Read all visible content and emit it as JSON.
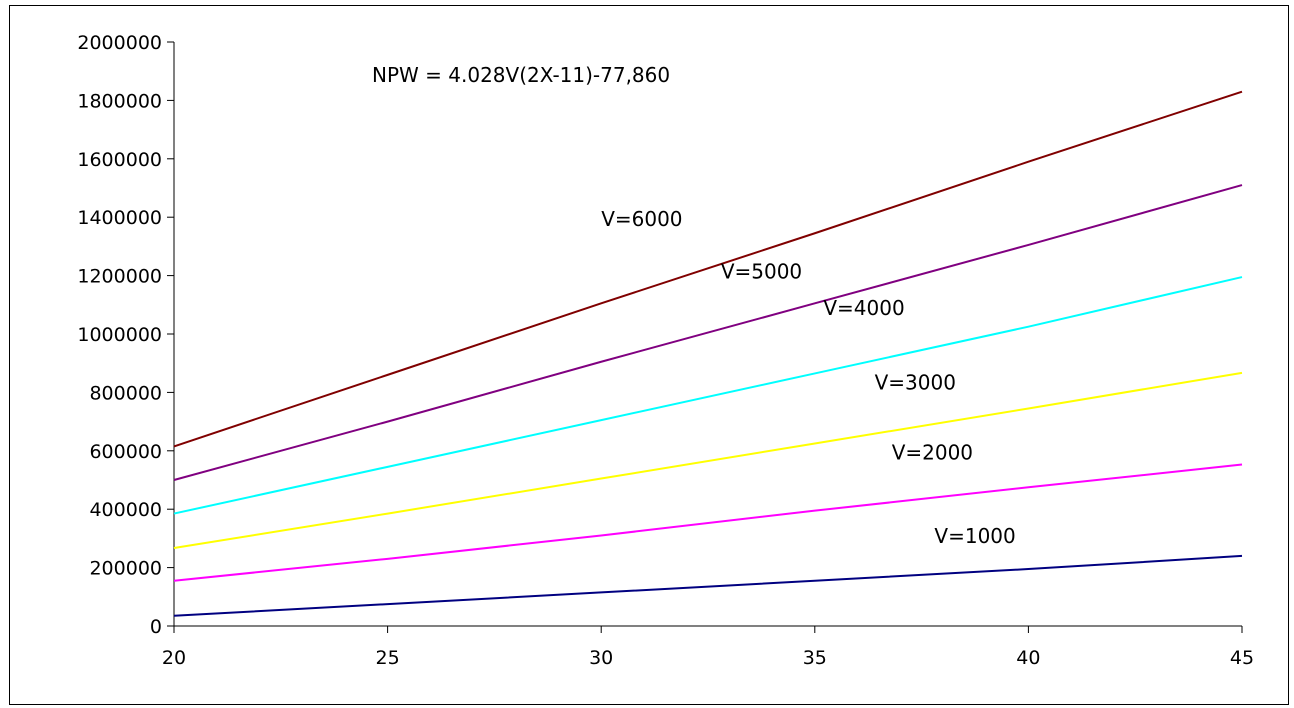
{
  "chart_data": {
    "type": "line",
    "title": "",
    "xlabel": "",
    "ylabel": "",
    "xlim": [
      20,
      45
    ],
    "ylim": [
      0,
      2000000
    ],
    "x_ticks": [
      20,
      25,
      30,
      35,
      40,
      45
    ],
    "y_ticks": [
      0,
      200000,
      400000,
      600000,
      800000,
      1000000,
      1200000,
      1400000,
      1600000,
      1800000,
      2000000
    ],
    "grid": false,
    "legend": "none",
    "annotations": {
      "equation": "NPW = 4.028V(2X-11)-77,860"
    },
    "x": [
      20,
      25,
      30,
      35,
      40,
      45
    ],
    "series": [
      {
        "name": "V=1000",
        "color": "#000080",
        "values": [
          35000,
          75000,
          115000,
          155000,
          195000,
          240000
        ]
      },
      {
        "name": "V=2000",
        "color": "#ff00ff",
        "values": [
          155000,
          230000,
          310000,
          395000,
          475000,
          553000
        ]
      },
      {
        "name": "V=3000",
        "color": "#ffff00",
        "values": [
          267000,
          385000,
          505000,
          625000,
          745000,
          867000
        ]
      },
      {
        "name": "V=4000",
        "color": "#00ffff",
        "values": [
          385000,
          545000,
          705000,
          865000,
          1025000,
          1195000
        ]
      },
      {
        "name": "V=5000",
        "color": "#800080",
        "values": [
          500000,
          700000,
          905000,
          1105000,
          1305000,
          1510000
        ]
      },
      {
        "name": "V=6000",
        "color": "#800000",
        "values": [
          615000,
          860000,
          1105000,
          1345000,
          1590000,
          1830000
        ]
      }
    ]
  }
}
